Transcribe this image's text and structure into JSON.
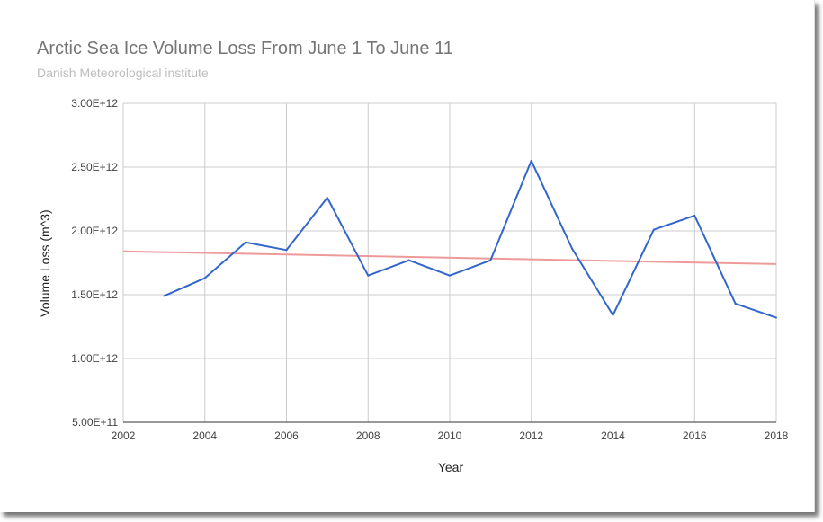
{
  "chart_data": {
    "type": "line",
    "title": "Arctic Sea Ice Volume Loss From June 1 To June 11",
    "subtitle": "Danish Meteorological institute",
    "xlabel": "Year",
    "ylabel": "Volume Loss (m^3)",
    "xlim": [
      2002,
      2018
    ],
    "ylim": [
      500000000000.0,
      3000000000000.0
    ],
    "x_ticks": [
      "2002",
      "2004",
      "2006",
      "2008",
      "2010",
      "2012",
      "2014",
      "2016",
      "2018"
    ],
    "y_ticks": [
      "5.00E+11",
      "1.00E+12",
      "1.50E+12",
      "2.00E+12",
      "2.50E+12",
      "3.00E+12"
    ],
    "grid": true,
    "series": [
      {
        "color": "#3366cc",
        "x": [
          2003,
          2004,
          2005,
          2006,
          2007,
          2008,
          2009,
          2010,
          2011,
          2012,
          2013,
          2014,
          2015,
          2016,
          2017,
          2018
        ],
        "values": [
          1490000000000.0,
          1630000000000.0,
          1910000000000.0,
          1850000000000.0,
          2260000000000.0,
          1650000000000.0,
          1770000000000.0,
          1650000000000.0,
          1770000000000.0,
          2550000000000.0,
          1860000000000.0,
          1340000000000.0,
          2010000000000.0,
          2120000000000.0,
          1430000000000.0,
          1320000000000.0
        ]
      }
    ],
    "trendline": {
      "color": "#ef9a9a",
      "x": [
        2002,
        2018
      ],
      "values": [
        1840000000000.0,
        1740000000000.0
      ]
    }
  }
}
